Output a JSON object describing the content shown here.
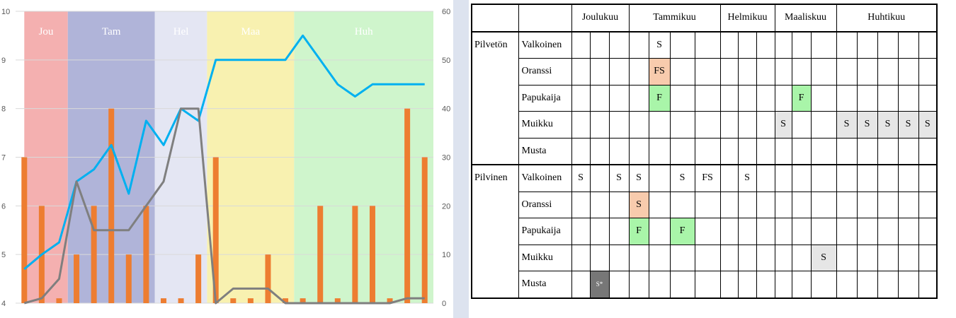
{
  "chart_data": {
    "type": "bar+line",
    "left_axis": {
      "min": 4,
      "max": 10,
      "ticks": [
        "4",
        "5",
        "6",
        "7",
        "8",
        "9",
        "10"
      ]
    },
    "right_axis": {
      "min": 0,
      "max": 60,
      "ticks": [
        "0",
        "10",
        "20",
        "30",
        "40",
        "50",
        "60"
      ]
    },
    "grid": true,
    "month_bands": [
      {
        "label": "Jou",
        "color": "#f4b0b0"
      },
      {
        "label": "Tam",
        "color": "#b0b4d9"
      },
      {
        "label": "Hel",
        "color": "#e4e6f3"
      },
      {
        "label": "Maa",
        "color": "#f8f1b0"
      },
      {
        "label": "Huh",
        "color": "#cff5cc"
      }
    ],
    "band_spans_index": [
      [
        0,
        2.5
      ],
      [
        2.5,
        7.5
      ],
      [
        7.5,
        10.5
      ],
      [
        10.5,
        15.5
      ],
      [
        15.5,
        24.5
      ]
    ],
    "bars": {
      "axis": "left",
      "color": "#ed7d31",
      "values": [
        7,
        6,
        4.1,
        5,
        6,
        8,
        5,
        6,
        4.1,
        4.1,
        5,
        7,
        4.1,
        4.1,
        5,
        4.1,
        4.1,
        6,
        4.1,
        6,
        6,
        4.1,
        8,
        7
      ]
    },
    "series": [
      {
        "axis": "left",
        "color": "#00b0f0",
        "values": [
          4.7,
          5.0,
          5.25,
          6.5,
          6.75,
          7.25,
          6.25,
          7.75,
          7.25,
          8.0,
          7.75,
          9.0,
          9.0,
          9.0,
          9.0,
          9.0,
          9.5,
          9.0,
          8.5,
          8.25,
          8.5,
          8.5,
          8.5,
          8.5
        ]
      },
      {
        "axis": "right",
        "color": "#7f7f7f",
        "values": [
          0,
          1,
          5,
          25,
          15,
          15,
          15,
          20,
          25,
          40,
          40,
          0,
          3,
          3,
          3,
          0,
          0,
          0,
          0,
          0,
          0,
          0,
          1,
          1
        ]
      }
    ]
  },
  "table": {
    "months": [
      {
        "label": "Joulukuu",
        "span": 3
      },
      {
        "label": "Tammikuu",
        "span": 4
      },
      {
        "label": "Helmikuu",
        "span": 3
      },
      {
        "label": "Maaliskuu",
        "span": 3
      },
      {
        "label": "Huhtikuu",
        "span": 5
      }
    ],
    "groups": [
      {
        "label": "Pilvetön",
        "rows": [
          {
            "label": "Valkoinen",
            "cells": [
              "",
              "",
              "",
              "",
              "S",
              "",
              "",
              "",
              "",
              "",
              "",
              "",
              "",
              "",
              "",
              "",
              "",
              ""
            ],
            "bg": []
          },
          {
            "label": "Oranssi",
            "cells": [
              "",
              "",
              "",
              "",
              "FS",
              "",
              "",
              "",
              "",
              "",
              "",
              "",
              "",
              "",
              "",
              "",
              "",
              ""
            ],
            "bg": [
              [
                4,
                "orange"
              ]
            ]
          },
          {
            "label": "Papukaija",
            "cells": [
              "",
              "",
              "",
              "",
              "F",
              "",
              "",
              "",
              "",
              "",
              "",
              "F",
              "",
              "",
              "",
              "",
              "",
              ""
            ],
            "bg": [
              [
                4,
                "green"
              ],
              [
                11,
                "green"
              ]
            ]
          },
          {
            "label": "Muikku",
            "cells": [
              "",
              "",
              "",
              "",
              "",
              "",
              "",
              "",
              "",
              "",
              "S",
              "",
              "",
              "S",
              "S",
              "S",
              "S",
              "S"
            ],
            "bg": [
              [
                10,
                "gray"
              ],
              [
                13,
                "gray"
              ],
              [
                14,
                "gray"
              ],
              [
                15,
                "gray"
              ],
              [
                16,
                "gray"
              ],
              [
                17,
                "gray"
              ]
            ]
          },
          {
            "label": "Musta",
            "cells": [
              "",
              "",
              "",
              "",
              "",
              "",
              "",
              "",
              "",
              "",
              "",
              "",
              "",
              "",
              "",
              "",
              "",
              ""
            ],
            "bg": []
          }
        ]
      },
      {
        "label": "Pilvinen",
        "rows": [
          {
            "label": "Valkoinen",
            "cells": [
              "S",
              "",
              "S",
              "S",
              "",
              "S",
              "FS",
              "",
              "S",
              "",
              "",
              "",
              "",
              "",
              "",
              "",
              "",
              ""
            ],
            "bg": []
          },
          {
            "label": "Oranssi",
            "cells": [
              "",
              "",
              "",
              "S",
              "",
              "",
              "",
              "",
              "",
              "",
              "",
              "",
              "",
              "",
              "",
              "",
              "",
              ""
            ],
            "bg": [
              [
                3,
                "orange"
              ]
            ]
          },
          {
            "label": "Papukaija",
            "cells": [
              "",
              "",
              "",
              "F",
              "",
              "F",
              "",
              "",
              "",
              "",
              "",
              "",
              "",
              "",
              "",
              "",
              "",
              ""
            ],
            "bg": [
              [
                3,
                "green"
              ],
              [
                5,
                "green"
              ]
            ]
          },
          {
            "label": "Muikku",
            "cells": [
              "",
              "",
              "",
              "",
              "",
              "",
              "",
              "",
              "",
              "",
              "",
              "",
              "S",
              "",
              "",
              "",
              "",
              ""
            ],
            "bg": [
              [
                12,
                "gray"
              ]
            ]
          },
          {
            "label": "Musta",
            "cells": [
              "",
              "S*",
              "",
              "",
              "",
              "",
              "",
              "",
              "",
              "",
              "",
              "",
              "",
              "",
              "",
              "",
              "",
              ""
            ],
            "bg": [
              [
                1,
                "dark"
              ]
            ]
          }
        ]
      }
    ]
  }
}
